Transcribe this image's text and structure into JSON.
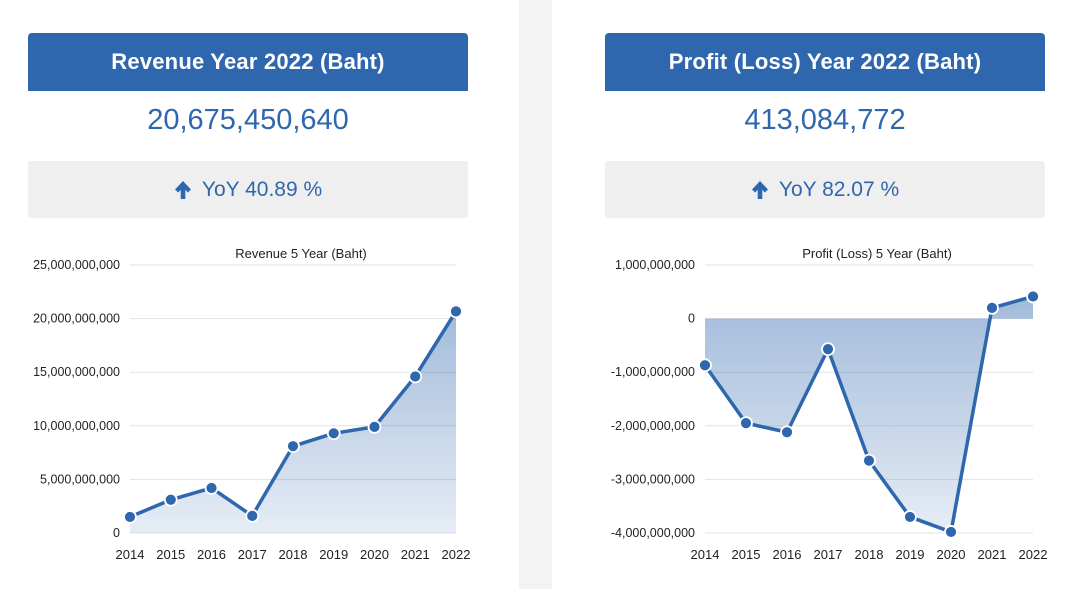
{
  "panels": [
    {
      "header": "Revenue Year 2022 (Baht)",
      "value": "20,675,450,640",
      "yoy_label": "YoY 40.89 %",
      "yoy_direction": "up",
      "icon": "arrow-up-icon",
      "chart_data": {
        "type": "area",
        "title": "Revenue 5 Year (Baht)",
        "x": [
          "2014",
          "2015",
          "2016",
          "2017",
          "2018",
          "2019",
          "2020",
          "2021",
          "2022"
        ],
        "values": [
          1500000000,
          3100000000,
          4200000000,
          1600000000,
          8100000000,
          9300000000,
          9900000000,
          14600000000,
          20675450640
        ],
        "ylim": [
          0,
          25000000000
        ],
        "yticks": [
          0,
          5000000000,
          10000000000,
          15000000000,
          20000000000,
          25000000000
        ],
        "ytick_labels": [
          "0",
          "5,000,000,000",
          "10,000,000,000",
          "15,000,000,000",
          "20,000,000,000",
          "25,000,000,000"
        ],
        "grid": true,
        "line_color": "#2f67ae"
      }
    },
    {
      "header": "Profit (Loss) Year 2022 (Baht)",
      "value": "413,084,772",
      "yoy_label": "YoY 82.07 %",
      "yoy_direction": "up",
      "icon": "arrow-up-icon",
      "chart_data": {
        "type": "area",
        "title": "Profit (Loss) 5 Year (Baht)",
        "x": [
          "2014",
          "2015",
          "2016",
          "2017",
          "2018",
          "2019",
          "2020",
          "2021",
          "2022"
        ],
        "values": [
          -870000000,
          -1950000000,
          -2120000000,
          -570000000,
          -2650000000,
          -3700000000,
          -3980000000,
          200000000,
          413084772
        ],
        "ylim": [
          -4000000000,
          1000000000
        ],
        "yticks": [
          -4000000000,
          -3000000000,
          -2000000000,
          -1000000000,
          0,
          1000000000
        ],
        "ytick_labels": [
          "-4,000,000,000",
          "-3,000,000,000",
          "-2,000,000,000",
          "-1,000,000,000",
          "0",
          "1,000,000,000"
        ],
        "grid": true,
        "line_color": "#2f67ae"
      }
    }
  ]
}
